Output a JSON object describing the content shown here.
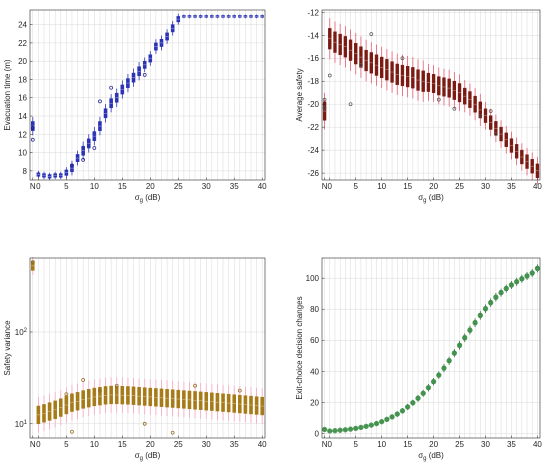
{
  "chart_data": [
    {
      "type": "boxplot",
      "xlabel": "σ",
      "xlabel_sub": "g",
      "xlabel_unit": " (dB)",
      "ylabel": "Evacuation time (m)",
      "x_categories": [
        "N",
        "0",
        "1",
        "2",
        "3",
        "4",
        "5",
        "6",
        "7",
        "8",
        "9",
        "10",
        "11",
        "12",
        "13",
        "14",
        "15",
        "16",
        "17",
        "18",
        "19",
        "20",
        "21",
        "22",
        "23",
        "24",
        "25",
        "26",
        "27",
        "28",
        "29",
        "30",
        "31",
        "32",
        "33",
        "34",
        "35",
        "36",
        "37",
        "38",
        "39",
        "40"
      ],
      "xticks": [
        "N",
        "0",
        "5",
        "10",
        "15",
        "20",
        "25",
        "30",
        "35",
        "40"
      ],
      "yticks": [
        8,
        10,
        12,
        14,
        16,
        18,
        20,
        22,
        24
      ],
      "ylim": [
        7,
        25.6
      ],
      "ylog": false,
      "grid": true,
      "color": "#2b33b5",
      "outlier_color": "#1a1f8c",
      "medians": [
        12.9,
        7.6,
        7.5,
        7.4,
        7.5,
        7.5,
        7.8,
        8.3,
        9.4,
        10.2,
        11.0,
        11.8,
        12.9,
        14.3,
        15.4,
        16.0,
        16.9,
        17.6,
        18.2,
        18.9,
        19.6,
        20.3,
        21.6,
        22.0,
        22.7,
        23.6,
        24.6,
        24.9,
        24.9,
        24.9,
        24.9,
        24.9,
        24.9,
        24.9,
        24.9,
        24.9,
        24.9,
        24.9,
        24.9,
        24.9,
        24.9,
        24.9
      ],
      "spread": [
        0.5,
        0.2,
        0.2,
        0.2,
        0.2,
        0.2,
        0.3,
        0.4,
        0.4,
        0.5,
        0.5,
        0.5,
        0.5,
        0.5,
        0.5,
        0.5,
        0.5,
        0.5,
        0.5,
        0.5,
        0.4,
        0.4,
        0.4,
        0.4,
        0.4,
        0.4,
        0.3,
        0.1,
        0.1,
        0.1,
        0.1,
        0.1,
        0.1,
        0.1,
        0.1,
        0.1,
        0.1,
        0.1,
        0.1,
        0.1,
        0.1,
        0.1
      ],
      "outliers": [
        [
          0,
          11.4
        ],
        [
          0,
          12.7
        ],
        [
          7,
          8.6
        ],
        [
          9,
          9.2
        ],
        [
          11,
          10.5
        ],
        [
          12,
          15.6
        ],
        [
          14,
          17.1
        ],
        [
          20,
          18.5
        ]
      ]
    },
    {
      "type": "boxplot",
      "xlabel": "σ",
      "xlabel_sub": "g",
      "xlabel_unit": " (dB)",
      "ylabel": "Average safety",
      "x_categories": [
        "N",
        "0",
        "1",
        "2",
        "3",
        "4",
        "5",
        "6",
        "7",
        "8",
        "9",
        "10",
        "11",
        "12",
        "13",
        "14",
        "15",
        "16",
        "17",
        "18",
        "19",
        "20",
        "21",
        "22",
        "23",
        "24",
        "25",
        "26",
        "27",
        "28",
        "29",
        "30",
        "31",
        "32",
        "33",
        "34",
        "35",
        "36",
        "37",
        "38",
        "39",
        "40"
      ],
      "xticks": [
        "N",
        "0",
        "5",
        "10",
        "15",
        "20",
        "25",
        "30",
        "35",
        "40"
      ],
      "yticks": [
        -12,
        -14,
        -16,
        -18,
        -20,
        -22,
        -24,
        -26
      ],
      "ylim": [
        -26.6,
        -11.8
      ],
      "ylog": false,
      "grid": true,
      "color": "#7a1a12",
      "whisker_color": "#e05a6e",
      "outlier_color": "#555555",
      "medians": [
        -20.6,
        -14.3,
        -14.6,
        -14.8,
        -15.0,
        -15.3,
        -15.6,
        -15.9,
        -16.2,
        -16.4,
        -16.6,
        -16.8,
        -17.0,
        -17.2,
        -17.4,
        -17.5,
        -17.6,
        -17.7,
        -17.9,
        -18.0,
        -18.1,
        -18.2,
        -18.4,
        -18.5,
        -18.6,
        -18.8,
        -19.0,
        -19.3,
        -19.6,
        -20.0,
        -20.5,
        -21.0,
        -21.6,
        -22.1,
        -22.6,
        -23.1,
        -23.6,
        -24.1,
        -24.6,
        -25.0,
        -25.4,
        -25.8
      ],
      "spread": [
        0.8,
        0.9,
        0.9,
        0.9,
        0.9,
        0.9,
        0.9,
        0.9,
        0.9,
        0.9,
        0.9,
        0.9,
        0.9,
        0.9,
        0.9,
        0.9,
        0.9,
        0.9,
        0.9,
        0.9,
        0.8,
        0.8,
        0.8,
        0.8,
        0.8,
        0.8,
        0.8,
        0.7,
        0.7,
        0.7,
        0.7,
        0.6,
        0.6,
        0.6,
        0.6,
        0.6,
        0.6,
        0.6,
        0.6,
        0.6,
        0.6,
        0.6
      ],
      "outliers": [
        [
          0,
          -19.6
        ],
        [
          0,
          -20.3
        ],
        [
          1,
          -17.5
        ],
        [
          5,
          -20.0
        ],
        [
          7,
          -16.6
        ],
        [
          9,
          -13.9
        ],
        [
          15,
          -16.0
        ],
        [
          22,
          -19.6
        ],
        [
          25,
          -20.4
        ],
        [
          30,
          -21.0
        ],
        [
          32,
          -20.6
        ],
        [
          33,
          -22.6
        ]
      ]
    },
    {
      "type": "boxplot",
      "xlabel": "σ",
      "xlabel_sub": "g",
      "xlabel_unit": " (dB)",
      "ylabel": "Safety variance",
      "x_categories": [
        "N",
        "0",
        "1",
        "2",
        "3",
        "4",
        "5",
        "6",
        "7",
        "8",
        "9",
        "10",
        "11",
        "12",
        "13",
        "14",
        "15",
        "16",
        "17",
        "18",
        "19",
        "20",
        "21",
        "22",
        "23",
        "24",
        "25",
        "26",
        "27",
        "28",
        "29",
        "30",
        "31",
        "32",
        "33",
        "34",
        "35",
        "36",
        "37",
        "38",
        "39",
        "40"
      ],
      "xticks": [
        "N",
        "0",
        "5",
        "10",
        "15",
        "20",
        "25",
        "30",
        "35",
        "40"
      ],
      "yticks": [
        10,
        100
      ],
      "yticklabels": [
        {
          "base": "10",
          "exp": "1"
        },
        {
          "base": "10",
          "exp": "2"
        }
      ],
      "ylim": [
        7,
        640
      ],
      "ylog": true,
      "grid": true,
      "color": "#a67a18",
      "whisker_color": "#f0a5c0",
      "outlier_color": "#8a6414",
      "medians": [
        525,
        12.5,
        13.0,
        13.6,
        14.2,
        15.0,
        16.0,
        17.0,
        17.6,
        18.4,
        19.0,
        19.6,
        20.0,
        20.4,
        20.6,
        20.6,
        20.5,
        20.4,
        20.2,
        20.0,
        19.8,
        19.6,
        19.4,
        19.2,
        19.0,
        18.8,
        18.6,
        18.4,
        18.2,
        18.0,
        17.8,
        17.6,
        17.4,
        17.2,
        17.0,
        16.8,
        16.6,
        16.4,
        16.2,
        16.0,
        15.8,
        15.6
      ],
      "spread": [
        1.12,
        1.25,
        1.25,
        1.25,
        1.25,
        1.25,
        1.25,
        1.25,
        1.25,
        1.25,
        1.25,
        1.25,
        1.25,
        1.25,
        1.25,
        1.25,
        1.25,
        1.25,
        1.25,
        1.25,
        1.25,
        1.25,
        1.25,
        1.25,
        1.25,
        1.25,
        1.25,
        1.25,
        1.25,
        1.25,
        1.25,
        1.25,
        1.25,
        1.25,
        1.25,
        1.25,
        1.25,
        1.25,
        1.25,
        1.25,
        1.25,
        1.25
      ],
      "outliers": [
        [
          0,
          580
        ],
        [
          6,
          21
        ],
        [
          7,
          8.2
        ],
        [
          9,
          30
        ],
        [
          12,
          23
        ],
        [
          15,
          26
        ],
        [
          20,
          10
        ],
        [
          25,
          8.0
        ],
        [
          29,
          26
        ],
        [
          37,
          23
        ]
      ]
    },
    {
      "type": "boxplot",
      "xlabel": "σ",
      "xlabel_sub": "g",
      "xlabel_unit": " (dB)",
      "ylabel": "Exit-choice decision changes",
      "x_categories": [
        "N",
        "0",
        "1",
        "2",
        "3",
        "4",
        "5",
        "6",
        "7",
        "8",
        "9",
        "10",
        "11",
        "12",
        "13",
        "14",
        "15",
        "16",
        "17",
        "18",
        "19",
        "20",
        "21",
        "22",
        "23",
        "24",
        "25",
        "26",
        "27",
        "28",
        "29",
        "30",
        "31",
        "32",
        "33",
        "34",
        "35",
        "36",
        "37",
        "38",
        "39",
        "40"
      ],
      "xticks": [
        "N",
        "0",
        "5",
        "10",
        "15",
        "20",
        "25",
        "30",
        "35",
        "40"
      ],
      "yticks": [
        0,
        20,
        40,
        60,
        80,
        100
      ],
      "ylim": [
        -3,
        113
      ],
      "ylog": false,
      "grid": true,
      "color": "#3f8f4a",
      "whisker_color": "#2e6b38",
      "outlier_color": "#3f8f4a",
      "medians": [
        2.5,
        1.5,
        1.7,
        2.0,
        2.3,
        2.7,
        3.2,
        3.8,
        4.5,
        5.3,
        6.3,
        7.5,
        9.0,
        10.6,
        12.4,
        14.5,
        17.0,
        19.7,
        22.6,
        25.8,
        29.4,
        33.3,
        37.5,
        42.0,
        46.8,
        51.7,
        56.7,
        61.6,
        66.5,
        71.3,
        76.0,
        80.3,
        84.2,
        87.7,
        90.7,
        93.3,
        95.6,
        97.7,
        99.6,
        101.4,
        103.3,
        106.3
      ],
      "spread": [
        0.6,
        0.5,
        0.5,
        0.5,
        0.5,
        0.5,
        0.6,
        0.6,
        0.6,
        0.6,
        0.7,
        0.7,
        0.8,
        0.8,
        0.9,
        0.9,
        1.0,
        1.0,
        1.1,
        1.1,
        1.2,
        1.2,
        1.2,
        1.3,
        1.3,
        1.3,
        1.4,
        1.4,
        1.4,
        1.4,
        1.4,
        1.4,
        1.4,
        1.4,
        1.3,
        1.3,
        1.3,
        1.3,
        1.3,
        1.3,
        1.3,
        1.3
      ],
      "outliers": []
    }
  ]
}
